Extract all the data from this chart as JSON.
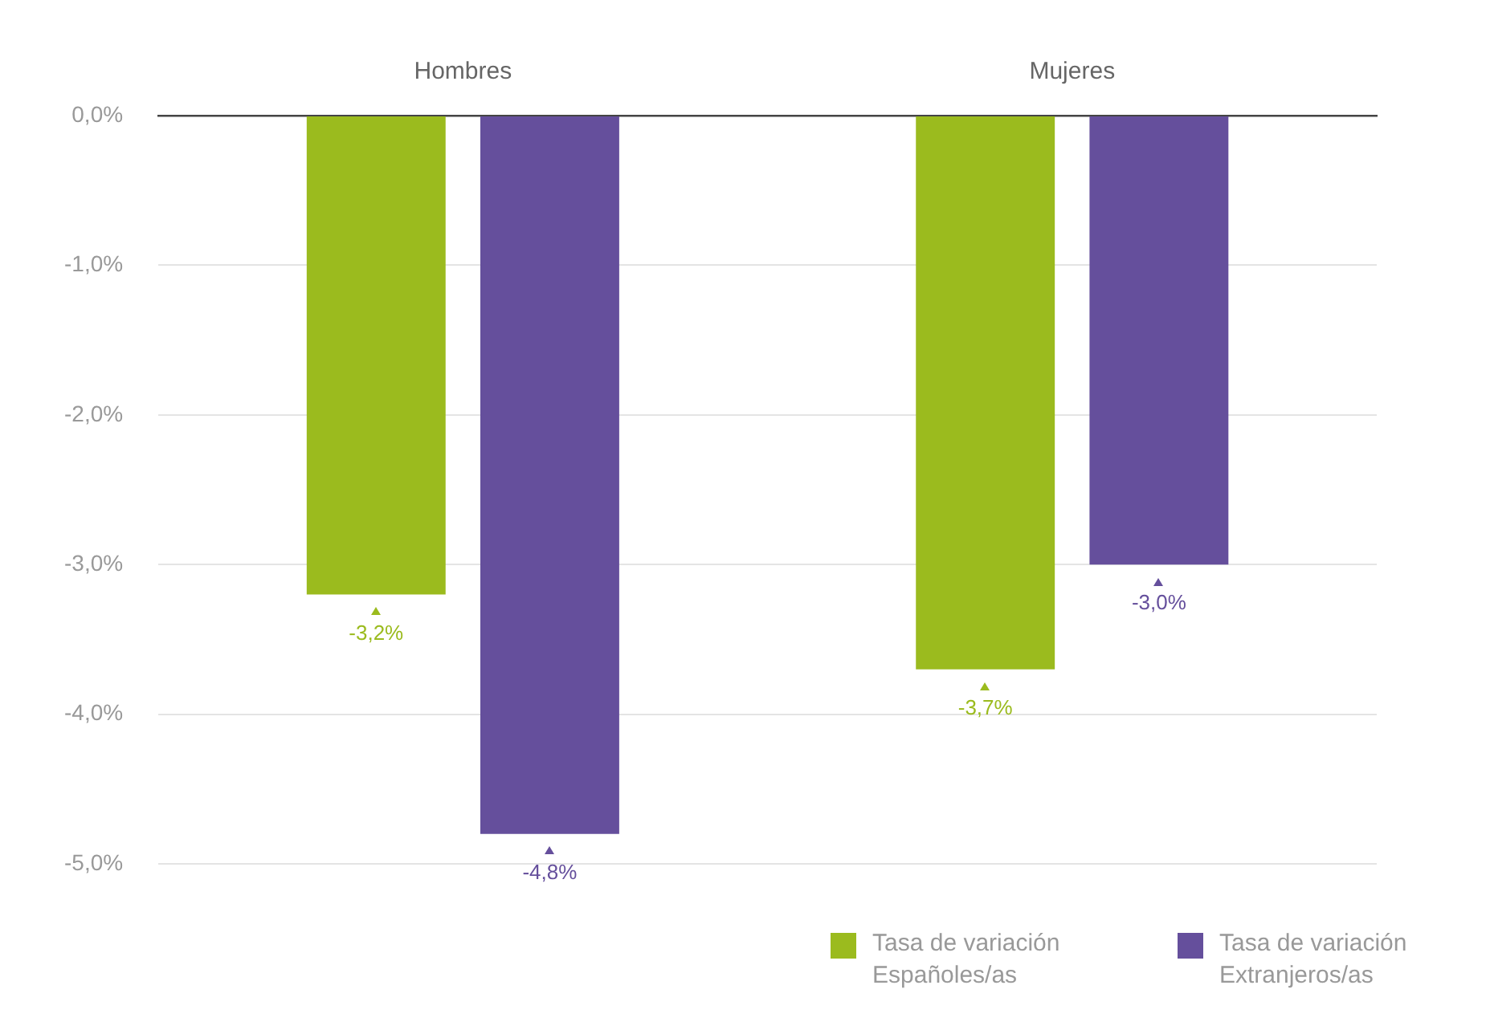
{
  "chart_data": {
    "type": "bar",
    "categories": [
      "Hombres",
      "Mujeres"
    ],
    "series": [
      {
        "name": "Tasa de variación Españoles/as",
        "color": "#9bbb1e",
        "values": [
          -3.2,
          -3.7
        ],
        "value_labels": [
          "-3,2%",
          "-3,7%"
        ]
      },
      {
        "name": "Tasa de variación Extranjeros/as",
        "color": "#654f9c",
        "values": [
          -4.8,
          -3.0
        ],
        "value_labels": [
          "-4,8%",
          "-3,0%"
        ]
      }
    ],
    "ylim": [
      -5,
      0
    ],
    "yticks": [
      {
        "value": -5,
        "label": "-5,0%"
      },
      {
        "value": -4,
        "label": "-4,0%"
      },
      {
        "value": -3,
        "label": "-3,0%"
      },
      {
        "value": -2,
        "label": "-2,0%"
      },
      {
        "value": -1,
        "label": "-1,0%"
      },
      {
        "value": 0,
        "label": "0,0%"
      }
    ],
    "grid": "y",
    "legend": "bottom right"
  }
}
